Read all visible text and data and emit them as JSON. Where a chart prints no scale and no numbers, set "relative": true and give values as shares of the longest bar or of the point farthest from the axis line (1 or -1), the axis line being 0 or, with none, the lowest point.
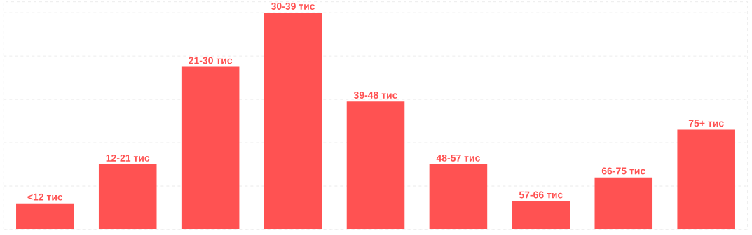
{
  "chart_data": {
    "type": "bar",
    "relative": true,
    "color": "#ff5252",
    "grid": true,
    "categories": [
      "<12 тис",
      "12-21 тис",
      "21-30 тис",
      "30-39 тис",
      "39-48 тис",
      "48-57 тис",
      "57-66 тис",
      "66-75 тис",
      "75+ тис"
    ],
    "values": [
      0.12,
      0.3,
      0.75,
      1,
      0.59,
      0.3,
      0.13,
      0.24,
      0.46
    ]
  }
}
